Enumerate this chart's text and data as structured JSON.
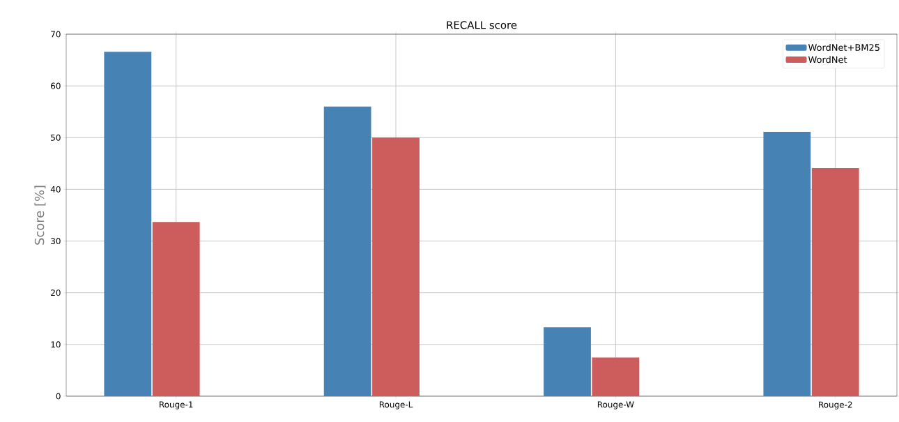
{
  "chart_data": {
    "type": "bar",
    "title": "RECALL score",
    "ylabel": "Score [%]",
    "categories": [
      "Rouge-1",
      "Rouge-L",
      "Rouge-W",
      "Rouge-2"
    ],
    "series": [
      {
        "name": "WordNet+BM25",
        "color": "#4682b4",
        "values": [
          66.6,
          56.0,
          13.3,
          51.1
        ]
      },
      {
        "name": "WordNet",
        "color": "#cd5c5c",
        "values": [
          33.7,
          50.0,
          7.5,
          44.1
        ]
      }
    ],
    "ylim": [
      0,
      70
    ],
    "yticks": [
      0,
      10,
      20,
      30,
      40,
      50,
      60,
      70
    ],
    "grid": true,
    "legend": "top right"
  }
}
